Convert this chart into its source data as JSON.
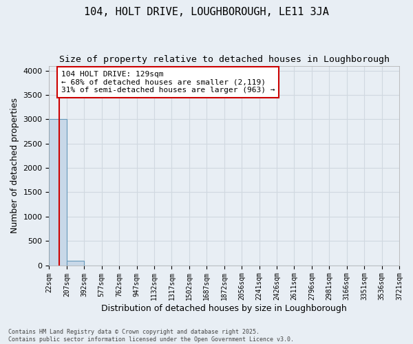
{
  "title": "104, HOLT DRIVE, LOUGHBOROUGH, LE11 3JA",
  "subtitle": "Size of property relative to detached houses in Loughborough",
  "xlabel": "Distribution of detached houses by size in Loughborough",
  "ylabel": "Number of detached properties",
  "bar_edges": [
    22,
    207,
    392,
    577,
    762,
    947,
    1132,
    1317,
    1502,
    1687,
    1872,
    2056,
    2241,
    2426,
    2611,
    2796,
    2981,
    3166,
    3351,
    3536,
    3721
  ],
  "bar_heights": [
    3000,
    100,
    0,
    0,
    0,
    0,
    0,
    0,
    0,
    0,
    0,
    0,
    0,
    0,
    0,
    0,
    0,
    0,
    0,
    0
  ],
  "bar_color": "#c8d8e8",
  "bar_edge_color": "#6699bb",
  "ylim": [
    0,
    4100
  ],
  "xlim": [
    22,
    3721
  ],
  "property_size": 129,
  "vline_color": "#cc0000",
  "annotation_text": "104 HOLT DRIVE: 129sqm\n← 68% of detached houses are smaller (2,119)\n31% of semi-detached houses are larger (963) →",
  "annotation_box_color": "#ffffff",
  "annotation_border_color": "#cc0000",
  "footer_line1": "Contains HM Land Registry data © Crown copyright and database right 2025.",
  "footer_line2": "Contains public sector information licensed under the Open Government Licence v3.0.",
  "background_color": "#e8eef4",
  "grid_color": "#d0d8e0",
  "title_fontsize": 11,
  "subtitle_fontsize": 9.5,
  "tick_label_fontsize": 7,
  "ylabel_fontsize": 9,
  "xlabel_fontsize": 9,
  "annotation_fontsize": 8,
  "footer_fontsize": 6
}
